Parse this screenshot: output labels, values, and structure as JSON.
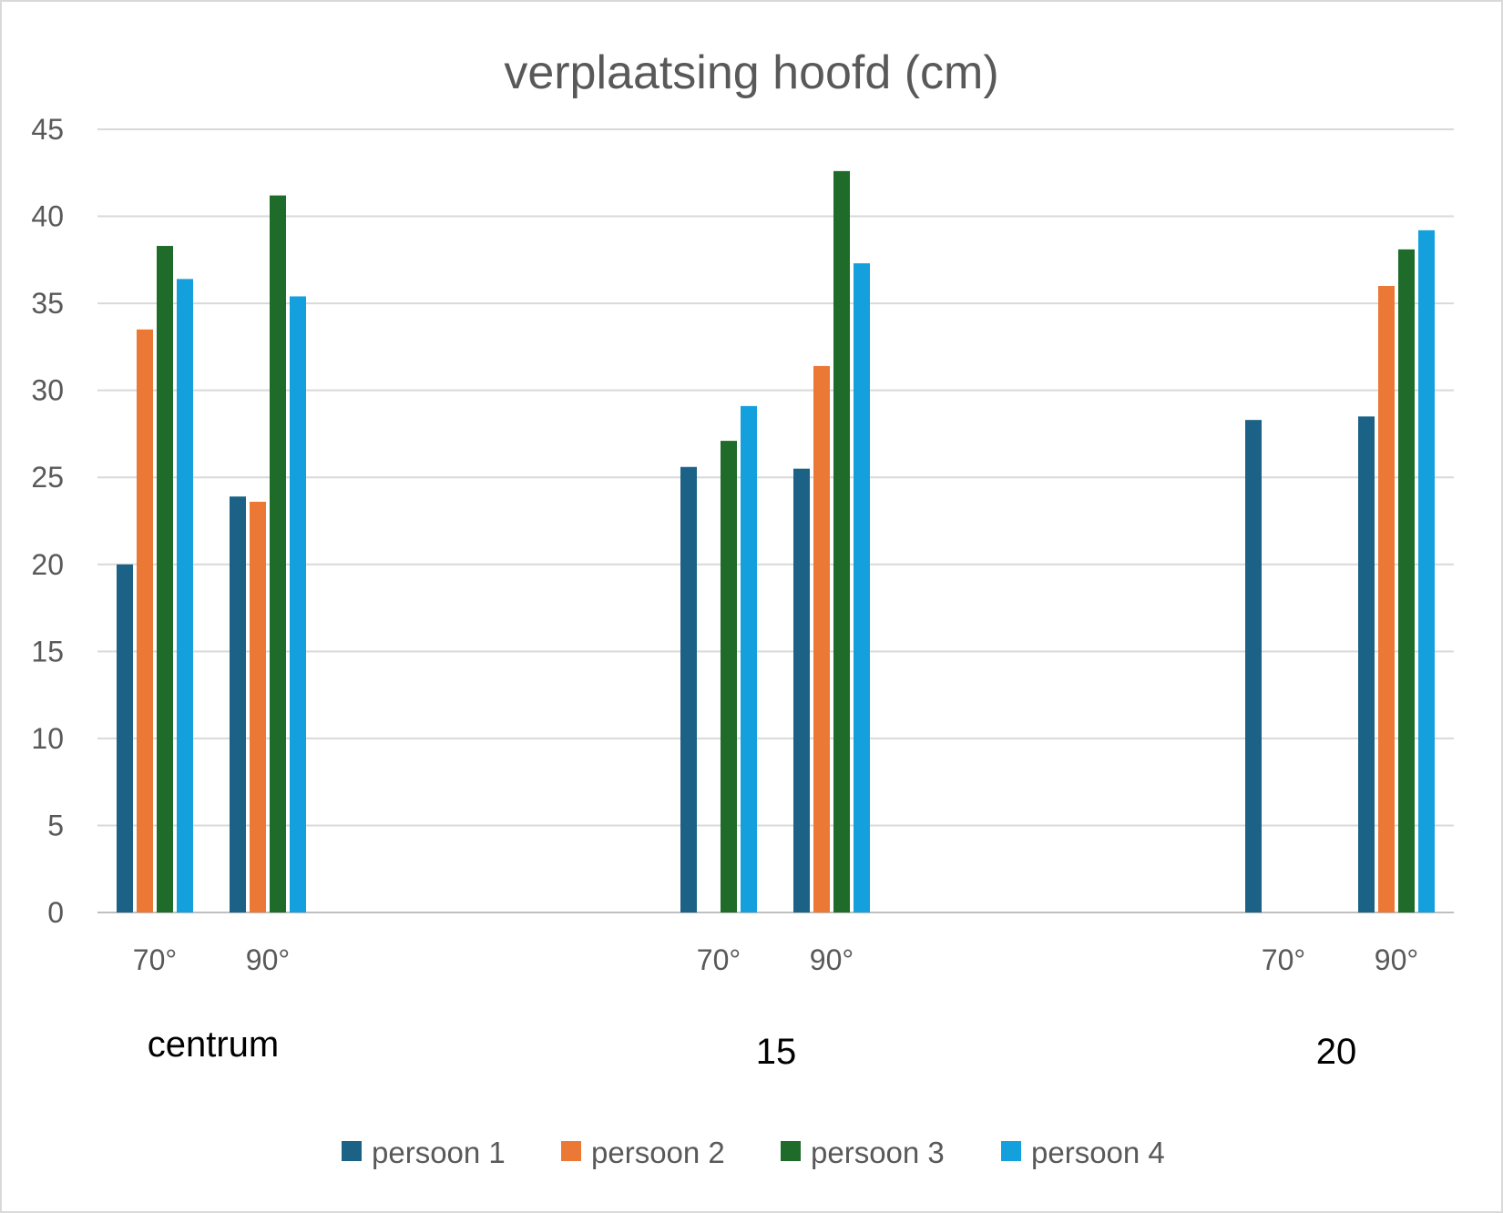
{
  "chart_data": {
    "type": "bar",
    "title": "verplaatsing hoofd (cm)",
    "xlabel": "",
    "ylabel": "",
    "ylim": [
      0,
      45
    ],
    "yticks": [
      0,
      5,
      10,
      15,
      20,
      25,
      30,
      35,
      40,
      45
    ],
    "grid": true,
    "legend_position": "bottom",
    "groups": [
      {
        "label": "centrum",
        "categories": [
          "70°",
          "90°"
        ]
      },
      {
        "label": "15",
        "categories": [
          "70°",
          "90°"
        ]
      },
      {
        "label": "20",
        "categories": [
          "70°",
          "90°"
        ]
      }
    ],
    "series": [
      {
        "name": "persoon 1",
        "color": "#1b6286",
        "values": [
          [
            20.0,
            23.9
          ],
          [
            25.6,
            25.5
          ],
          [
            28.3,
            28.5
          ]
        ]
      },
      {
        "name": "persoon 2",
        "color": "#ec7836",
        "values": [
          [
            33.5,
            23.6
          ],
          [
            null,
            31.4
          ],
          [
            null,
            36.0
          ]
        ]
      },
      {
        "name": "persoon 3",
        "color": "#1e6b2a",
        "values": [
          [
            38.3,
            41.2
          ],
          [
            27.1,
            42.6
          ],
          [
            null,
            38.1
          ]
        ]
      },
      {
        "name": "persoon 4",
        "color": "#14a0dc",
        "values": [
          [
            36.4,
            35.4
          ],
          [
            29.1,
            37.3
          ],
          [
            null,
            39.2
          ]
        ]
      }
    ]
  }
}
